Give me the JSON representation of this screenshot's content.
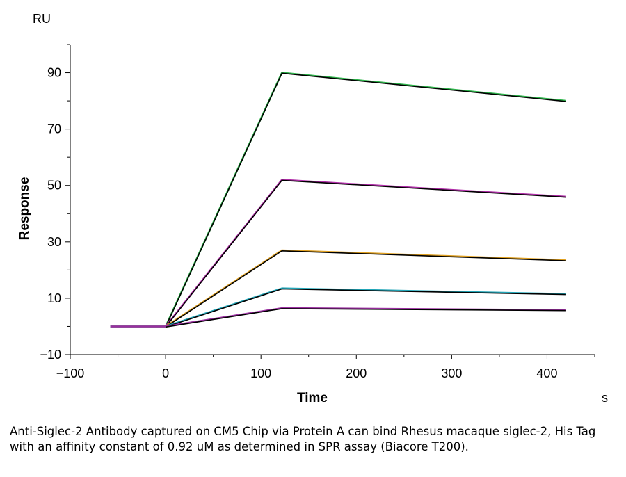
{
  "chart_data": {
    "type": "line",
    "y_unit": "RU",
    "x_unit": "s",
    "xlabel": "Time",
    "ylabel": "Response",
    "xlim": [
      -100,
      450
    ],
    "ylim": [
      -10,
      100
    ],
    "x_ticks": [
      -100,
      0,
      100,
      200,
      300,
      400
    ],
    "y_ticks": [
      -10,
      10,
      30,
      50,
      70,
      90
    ],
    "x_tick_labels": [
      "−100",
      "0",
      "100",
      "200",
      "300",
      "400"
    ],
    "y_tick_labels": [
      "−10",
      "10",
      "30",
      "50",
      "70",
      "90"
    ],
    "grid": false,
    "legend": false,
    "series": [
      {
        "color": "#2db34a",
        "fit_color": "#000000",
        "x": [
          -58,
          0,
          122,
          420
        ],
        "y": [
          0,
          0,
          90,
          80
        ]
      },
      {
        "color": "#b02ea8",
        "fit_color": "#000000",
        "x": [
          -58,
          0,
          122,
          420
        ],
        "y": [
          0,
          0,
          52,
          46
        ]
      },
      {
        "color": "#e0a020",
        "fit_color": "#000000",
        "x": [
          -58,
          0,
          122,
          420
        ],
        "y": [
          0,
          0,
          27,
          23.5
        ]
      },
      {
        "color": "#22a6b8",
        "fit_color": "#000000",
        "x": [
          -58,
          0,
          122,
          420
        ],
        "y": [
          0,
          0,
          13.5,
          11.5
        ]
      },
      {
        "color": "#9a2ea0",
        "fit_color": "#000000",
        "x": [
          -58,
          0,
          122,
          420
        ],
        "y": [
          0,
          0,
          6.5,
          5.8
        ]
      }
    ]
  },
  "caption": "Anti-Siglec-2 Antibody captured on CM5 Chip via Protein A can bind Rhesus macaque siglec-2, His Tag with an affinity constant of 0.92 uM as determined in SPR assay (Biacore T200)."
}
